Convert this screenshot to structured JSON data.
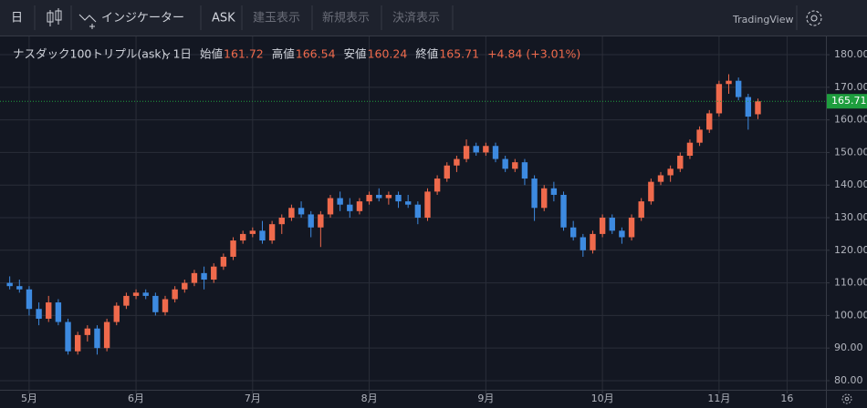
{
  "toolbar": {
    "interval": "日",
    "indicators": "インジケーター",
    "price_side": "ASK",
    "buttons": [
      "建玉表示",
      "新規表示",
      "決済表示"
    ],
    "brand": "TradingView"
  },
  "chart_data": {
    "type": "candlestick",
    "symbol": "ナスダック100トリプル(ask), 1日",
    "legend_labels": {
      "open": "始値",
      "high": "高値",
      "low": "安値",
      "close": "終値"
    },
    "change": "+4.84 (+3.01%)",
    "up_color": "#ef6a4c",
    "down_color": "#3d8ae0",
    "last_color": "#1e9e3e",
    "open": [
      110,
      109,
      108,
      102,
      99,
      104,
      98,
      89,
      94,
      96,
      90,
      98,
      103,
      106,
      107,
      106,
      101,
      105,
      108,
      110,
      113,
      111,
      115,
      118,
      123,
      125,
      126,
      123,
      128,
      130,
      133,
      131,
      127,
      131,
      136,
      134,
      132,
      135,
      137,
      136,
      137,
      135,
      134,
      130,
      138,
      142,
      146,
      148,
      152,
      150,
      152,
      148,
      145,
      147,
      142,
      133,
      139,
      137,
      127,
      124,
      120,
      125,
      130,
      126,
      124,
      130,
      135,
      141,
      143,
      145,
      149,
      153,
      157,
      162,
      171,
      172,
      167,
      161.72
    ],
    "high": [
      112,
      111,
      109,
      104,
      106,
      105,
      99,
      95,
      97,
      97,
      99,
      104,
      107,
      108,
      108,
      107,
      106,
      109,
      111,
      114,
      115,
      116,
      119,
      124,
      126,
      127,
      129,
      129,
      131,
      134,
      135,
      132,
      132,
      137,
      138,
      136,
      136,
      138,
      139,
      138,
      138,
      137,
      135,
      139,
      143,
      147,
      149,
      154,
      153,
      153,
      153,
      149,
      148,
      148,
      143,
      140,
      141,
      138,
      129,
      125,
      126,
      131,
      131,
      127,
      131,
      136,
      142,
      144,
      146,
      150,
      154,
      158,
      163,
      172,
      174,
      173,
      168,
      166.54
    ],
    "low": [
      108,
      107,
      100,
      97,
      98,
      97,
      88,
      88,
      92,
      88,
      89,
      97,
      102,
      105,
      105,
      100,
      100,
      104,
      107,
      109,
      108,
      110,
      114,
      117,
      122,
      124,
      122,
      122,
      125,
      129,
      130,
      124,
      121,
      130,
      132,
      130,
      131,
      134,
      135,
      134,
      133,
      133,
      128,
      129,
      137,
      141,
      144,
      147,
      149,
      149,
      147,
      144,
      144,
      140,
      129,
      132,
      135,
      126,
      123,
      118,
      119,
      124,
      125,
      122,
      123,
      129,
      134,
      140,
      141,
      144,
      148,
      152,
      156,
      161,
      168,
      166,
      157,
      160.24
    ],
    "close": [
      109,
      108,
      102,
      99,
      104,
      98,
      89,
      94,
      96,
      90,
      98,
      103,
      106,
      107,
      106,
      101,
      105,
      108,
      110,
      113,
      111,
      115,
      118,
      123,
      125,
      126,
      123,
      128,
      130,
      133,
      131,
      127,
      131,
      136,
      134,
      132,
      135,
      137,
      136,
      137,
      135,
      134,
      130,
      138,
      142,
      146,
      148,
      152,
      150,
      152,
      148,
      145,
      147,
      142,
      133,
      139,
      137,
      127,
      124,
      120,
      125,
      130,
      126,
      124,
      130,
      135,
      141,
      143,
      145,
      149,
      153,
      157,
      162,
      171,
      172,
      167,
      161,
      165.71
    ],
    "xlim": [
      -1,
      84
    ],
    "xticks": [
      {
        "value": 2,
        "label": "5月"
      },
      {
        "value": 13,
        "label": "6月"
      },
      {
        "value": 25,
        "label": "7月"
      },
      {
        "value": 37,
        "label": "8月"
      },
      {
        "value": 49,
        "label": "9月"
      },
      {
        "value": 61,
        "label": "10月"
      },
      {
        "value": 73,
        "label": "11月"
      },
      {
        "value": 80,
        "label": "16"
      }
    ],
    "ylim": [
      77.2,
      185.6
    ],
    "yticks": [
      {
        "value": 80,
        "label": "80.00"
      },
      {
        "value": 90,
        "label": "90.00"
      },
      {
        "value": 100,
        "label": "100.00"
      },
      {
        "value": 110,
        "label": "110.00"
      },
      {
        "value": 120,
        "label": "120.00"
      },
      {
        "value": 130,
        "label": "130.00"
      },
      {
        "value": 140,
        "label": "140.00"
      },
      {
        "value": 150,
        "label": "150.00"
      },
      {
        "value": 160,
        "label": "160.00"
      },
      {
        "value": 170,
        "label": "170.00"
      },
      {
        "value": 180,
        "label": "180.00"
      }
    ],
    "grid": true
  }
}
